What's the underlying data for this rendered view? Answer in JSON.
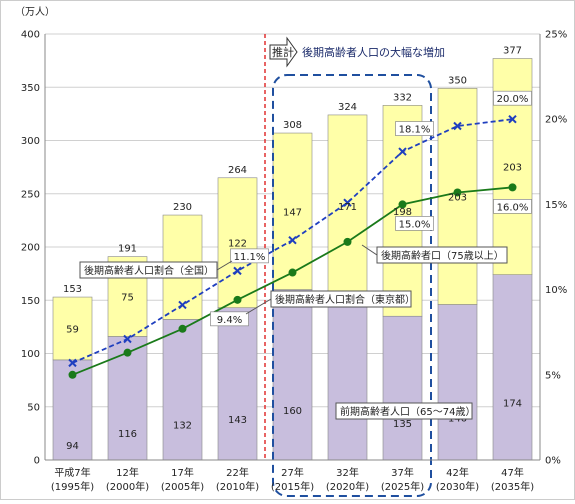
{
  "chart_data": {
    "type": "bar",
    "y_unit_label": "（万人）",
    "left_axis": {
      "min": 0,
      "max": 400,
      "step": 50
    },
    "right_axis": {
      "min": 0,
      "max": 25,
      "step": 5,
      "ticks": [
        "0%",
        "5%",
        "10%",
        "15%",
        "20%",
        "25%"
      ]
    },
    "categories": [
      {
        "era": "平成7年",
        "year": "(1995年)"
      },
      {
        "era": "12年",
        "year": "(2000年)"
      },
      {
        "era": "17年",
        "year": "(2005年)"
      },
      {
        "era": "22年",
        "year": "(2010年)"
      },
      {
        "era": "27年",
        "year": "(2015年)"
      },
      {
        "era": "32年",
        "year": "(2020年)"
      },
      {
        "era": "37年",
        "year": "(2025年)"
      },
      {
        "era": "42年",
        "year": "(2030年)"
      },
      {
        "era": "47年",
        "year": "(2035年)"
      }
    ],
    "series": [
      {
        "key": "early",
        "values": [
          94,
          116,
          132,
          143,
          160,
          153,
          135,
          146,
          174
        ],
        "color": "#c8bedd"
      },
      {
        "key": "late",
        "values": [
          59,
          75,
          98,
          122,
          147,
          171,
          198,
          203,
          203
        ],
        "color": "#ffffa8"
      }
    ],
    "totals": [
      153,
      191,
      230,
      264,
      308,
      324,
      332,
      350,
      377
    ],
    "lines": [
      {
        "key": "national",
        "values": [
          5.7,
          7.1,
          9.1,
          11.1,
          12.9,
          15.1,
          18.1,
          19.6,
          20.0
        ],
        "color": "#1f3fbf"
      },
      {
        "key": "tokyo",
        "values": [
          5.0,
          6.3,
          7.7,
          9.4,
          11.0,
          12.8,
          15.0,
          15.7,
          16.0
        ],
        "color": "#1a7a1a"
      }
    ],
    "point_labels": [
      {
        "text": "11.1%"
      },
      {
        "text": "9.4%"
      },
      {
        "text": "18.1%"
      },
      {
        "text": "15.0%"
      },
      {
        "text": "20.0%"
      },
      {
        "text": "16.0%"
      }
    ],
    "callouts": {
      "national": "後期高齢者人口割合（全国）",
      "tokyo": "後期高齢者人口割合（東京都）",
      "late": "後期高齢者口（75歳以上）",
      "early": "前期高齢者人口（65～74歳）",
      "increase": "後期高齢者人口の大幅な増加"
    },
    "projection_label": "推計"
  }
}
